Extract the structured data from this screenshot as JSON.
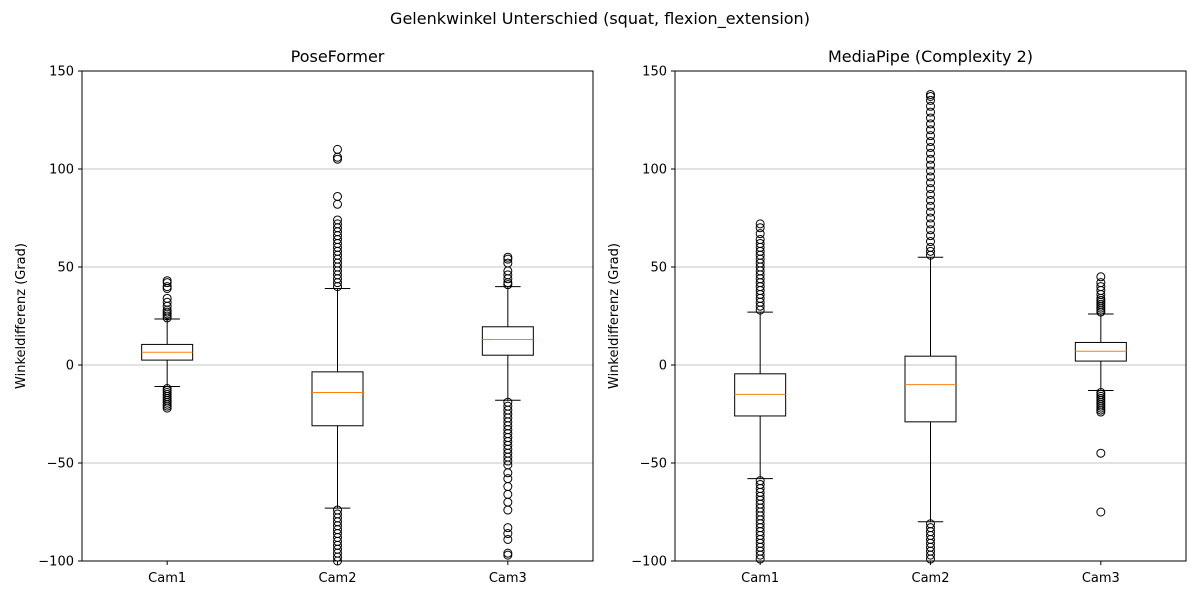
{
  "suptitle": "Gelenkwinkel Unterschied (squat, flexion_extension)",
  "style": {
    "median_color": "#ff7f0e",
    "box_color": "#000000",
    "grid_color": "#b0b0b0"
  },
  "chart_data": [
    {
      "type": "box",
      "title": "PoseFormer",
      "xlabel": "",
      "ylabel": "Winkeldifferenz (Grad)",
      "ylim": [
        -100,
        150
      ],
      "yticks": [
        -100,
        -50,
        0,
        50,
        100,
        150
      ],
      "ytick_labels": [
        "−100",
        "−50",
        "0",
        "50",
        "100",
        "150"
      ],
      "grid": "y",
      "categories": [
        "Cam1",
        "Cam2",
        "Cam3"
      ],
      "boxes": [
        {
          "whisker_low": -11,
          "q1": 2.5,
          "median": 6.5,
          "q3": 10.5,
          "whisker_high": 23.5,
          "outliers_high": [
            24,
            25,
            26,
            27,
            28,
            30,
            32,
            34,
            39,
            40,
            42,
            43
          ],
          "outliers_low": [
            -12,
            -13,
            -14,
            -15,
            -16,
            -17,
            -18,
            -19,
            -20,
            -21,
            -22
          ]
        },
        {
          "whisker_low": -73,
          "q1": -31,
          "median": -14,
          "q3": -3.5,
          "whisker_high": 39,
          "outliers_high": [
            40,
            42,
            44,
            46,
            48,
            50,
            52,
            54,
            56,
            58,
            60,
            62,
            64,
            66,
            68,
            70,
            72,
            74,
            82,
            86,
            105,
            106,
            110
          ],
          "outliers_low": [
            -74,
            -76,
            -78,
            -80,
            -82,
            -84,
            -86,
            -88,
            -90,
            -92,
            -94,
            -96,
            -98,
            -100
          ]
        },
        {
          "whisker_low": -18,
          "q1": 5,
          "median": 13,
          "q3": 19.5,
          "whisker_high": 40,
          "outliers_high": [
            41,
            42,
            44,
            46,
            48,
            52,
            54,
            55
          ],
          "outliers_low": [
            -19,
            -21,
            -23,
            -25,
            -27,
            -29,
            -31,
            -33,
            -35,
            -37,
            -39,
            -41,
            -43,
            -45,
            -47,
            -49,
            -51,
            -55,
            -58,
            -62,
            -66,
            -70,
            -74,
            -83,
            -86,
            -89,
            -96,
            -97
          ]
        }
      ]
    },
    {
      "type": "box",
      "title": "MediaPipe (Complexity 2)",
      "xlabel": "",
      "ylabel": "Winkeldifferenz (Grad)",
      "ylim": [
        -100,
        150
      ],
      "yticks": [
        -100,
        -50,
        0,
        50,
        100,
        150
      ],
      "ytick_labels": [
        "−100",
        "−50",
        "0",
        "50",
        "100",
        "150"
      ],
      "grid": "y",
      "categories": [
        "Cam1",
        "Cam2",
        "Cam3"
      ],
      "boxes": [
        {
          "whisker_low": -58,
          "q1": -26,
          "median": -15,
          "q3": -4.5,
          "whisker_high": 27,
          "outliers_high": [
            28,
            30,
            32,
            34,
            36,
            38,
            40,
            42,
            44,
            46,
            48,
            50,
            52,
            54,
            56,
            58,
            60,
            62,
            64,
            67,
            70,
            72
          ],
          "outliers_low": [
            -59,
            -61,
            -63,
            -65,
            -67,
            -69,
            -71,
            -73,
            -75,
            -77,
            -79,
            -81,
            -83,
            -85,
            -87,
            -89,
            -91,
            -93,
            -95,
            -97,
            -99
          ]
        },
        {
          "whisker_low": -80,
          "q1": -29,
          "median": -10,
          "q3": 4.5,
          "whisker_high": 55,
          "outliers_high": [
            56,
            58,
            60,
            63,
            66,
            69,
            72,
            75,
            78,
            81,
            84,
            87,
            90,
            93,
            96,
            99,
            102,
            105,
            108,
            111,
            114,
            117,
            120,
            123,
            126,
            129,
            132,
            135,
            137,
            138
          ],
          "outliers_low": [
            -81,
            -83,
            -85,
            -87,
            -89,
            -91,
            -93,
            -95,
            -97,
            -99
          ]
        },
        {
          "whisker_low": -13,
          "q1": 2,
          "median": 7,
          "q3": 11.5,
          "whisker_high": 26,
          "outliers_high": [
            27,
            28,
            29,
            30,
            31,
            32,
            33,
            34,
            36,
            38,
            40,
            42,
            45
          ],
          "outliers_low": [
            -14,
            -15,
            -16,
            -17,
            -18,
            -19,
            -20,
            -21,
            -22,
            -23,
            -24,
            -45,
            -75
          ]
        }
      ]
    }
  ]
}
